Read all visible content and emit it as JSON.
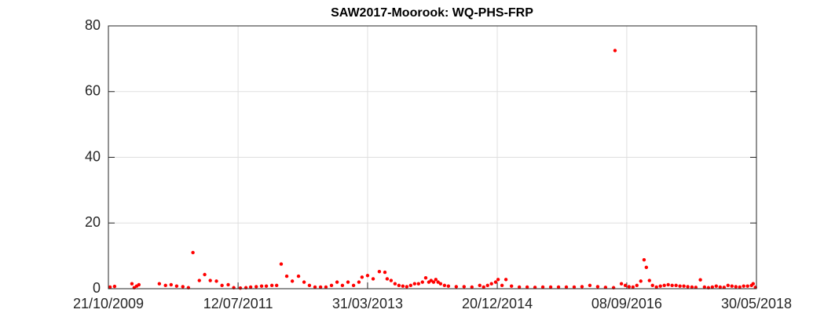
{
  "chart_data": {
    "type": "scatter",
    "title": "SAW2017-Moorook: WQ-PHS-FRP",
    "color": "#ff0000",
    "grid": true,
    "xlim": [
      "21/10/2009",
      "30/05/2018"
    ],
    "xticks": [
      "21/10/2009",
      "12/07/2011",
      "31/03/2013",
      "20/12/2014",
      "08/09/2016",
      "30/05/2018"
    ],
    "ylim": [
      0,
      80
    ],
    "yticks": [
      0,
      20,
      40,
      60,
      80
    ],
    "x": [
      "29/10/2009",
      "20/11/2009",
      "12/02/2010",
      "23/02/2010",
      "07/03/2010",
      "18/03/2010",
      "25/06/2010",
      "25/07/2010",
      "21/08/2010",
      "17/09/2010",
      "17/10/2010",
      "13/11/2010",
      "05/12/2010",
      "05/01/2011",
      "31/01/2011",
      "27/02/2011",
      "29/03/2011",
      "25/04/2011",
      "25/05/2011",
      "21/06/2011",
      "23/07/2011",
      "19/08/2011",
      "11/09/2011",
      "08/10/2011",
      "03/11/2011",
      "26/11/2011",
      "23/12/2011",
      "15/01/2012",
      "06/02/2012",
      "04/03/2012",
      "31/03/2012",
      "30/04/2012",
      "27/05/2012",
      "22/06/2012",
      "19/07/2012",
      "15/08/2012",
      "10/09/2012",
      "07/10/2012",
      "03/11/2012",
      "29/11/2012",
      "26/12/2012",
      "22/01/2013",
      "17/02/2013",
      "04/03/2013",
      "31/03/2013",
      "27/04/2013",
      "27/05/2013",
      "23/06/2013",
      "04/07/2013",
      "23/07/2013",
      "11/08/2013",
      "30/08/2013",
      "18/09/2013",
      "07/10/2013",
      "26/10/2013",
      "14/11/2013",
      "03/12/2013",
      "22/12/2013",
      "07/01/2014",
      "22/01/2014",
      "02/02/2014",
      "14/02/2014",
      "25/02/2014",
      "08/03/2014",
      "20/03/2014",
      "08/04/2014",
      "27/04/2014",
      "04/06/2014",
      "12/07/2014",
      "19/08/2014",
      "26/09/2014",
      "15/10/2014",
      "03/11/2014",
      "22/11/2014",
      "12/12/2014",
      "24/12/2014",
      "12/01/2015",
      "31/01/2015",
      "27/02/2015",
      "06/04/2015",
      "14/05/2015",
      "21/06/2015",
      "29/07/2015",
      "05/09/2015",
      "13/10/2015",
      "20/11/2015",
      "28/12/2015",
      "04/02/2016",
      "13/03/2016",
      "20/04/2016",
      "28/05/2016",
      "06/07/2016",
      "13/07/2016",
      "13/08/2016",
      "01/09/2016",
      "19/09/2016",
      "08/10/2016",
      "27/10/2016",
      "15/11/2016",
      "01/12/2016",
      "12/12/2016",
      "27/12/2016",
      "11/01/2017",
      "30/01/2017",
      "18/02/2017",
      "09/03/2017",
      "28/03/2017",
      "16/04/2017",
      "05/05/2017",
      "24/05/2017",
      "12/06/2017",
      "01/07/2017",
      "21/07/2017",
      "09/08/2017",
      "31/08/2017",
      "20/09/2017",
      "09/10/2017",
      "28/10/2017",
      "16/11/2017",
      "05/12/2017",
      "24/12/2017",
      "12/01/2018",
      "31/01/2018",
      "19/02/2018",
      "10/03/2018",
      "29/03/2018",
      "17/04/2018",
      "06/05/2018",
      "14/05/2018",
      "25/05/2018"
    ],
    "values": [
      0.5,
      0.7,
      1.5,
      0.3,
      0.8,
      1.2,
      1.5,
      1.0,
      1.2,
      0.8,
      0.6,
      0.3,
      11,
      2.5,
      4.3,
      2.5,
      2.3,
      1.0,
      1.2,
      0.3,
      0.2,
      0.3,
      0.5,
      0.6,
      0.8,
      0.8,
      1.0,
      1.0,
      7.5,
      3.8,
      2.3,
      3.8,
      2.0,
      1.0,
      0.5,
      0.5,
      0.5,
      1.0,
      2.0,
      1.0,
      2.0,
      1.0,
      2.0,
      3.5,
      4.0,
      3.0,
      5.2,
      5.0,
      3.0,
      2.5,
      1.5,
      1.0,
      0.8,
      0.6,
      1.0,
      1.5,
      1.5,
      2.0,
      3.3,
      2.0,
      2.5,
      2.0,
      2.8,
      2.0,
      1.5,
      1.0,
      0.8,
      0.6,
      0.6,
      0.5,
      1.0,
      0.5,
      1.0,
      1.5,
      2.0,
      2.8,
      1.0,
      2.8,
      0.8,
      0.5,
      0.5,
      0.4,
      0.5,
      0.5,
      0.5,
      0.5,
      0.5,
      0.6,
      1.0,
      0.6,
      0.4,
      0.3,
      72.5,
      1.5,
      1.0,
      0.6,
      0.5,
      1.0,
      2.3,
      8.8,
      6.5,
      2.5,
      1.0,
      0.5,
      0.8,
      1.0,
      1.2,
      1.0,
      1.0,
      0.8,
      0.8,
      0.6,
      0.5,
      0.4,
      2.7,
      0.5,
      0.3,
      0.5,
      0.8,
      0.5,
      0.4,
      1.0,
      0.8,
      0.6,
      0.5,
      0.8,
      0.8,
      1.0,
      1.5,
      0.4
    ]
  }
}
